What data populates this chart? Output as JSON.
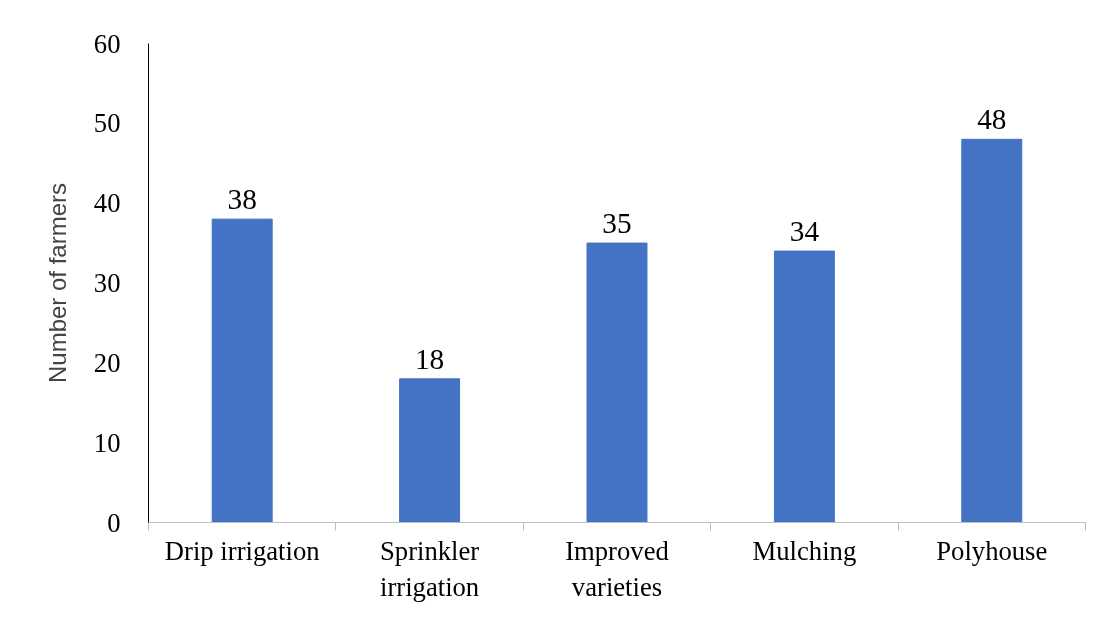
{
  "chart_data": {
    "type": "bar",
    "ylabel": "Number of farmers",
    "categories": [
      "Drip irrigation",
      "Sprinkler irrigation",
      "Improved varieties",
      "Mulching",
      "Polyhouse"
    ],
    "values": [
      38,
      18,
      35,
      34,
      48
    ],
    "color": "#4472c4",
    "ylim": [
      0,
      60
    ],
    "yticks": [
      0,
      10,
      20,
      30,
      40,
      50,
      60
    ],
    "grid": false,
    "data_labels": true
  }
}
